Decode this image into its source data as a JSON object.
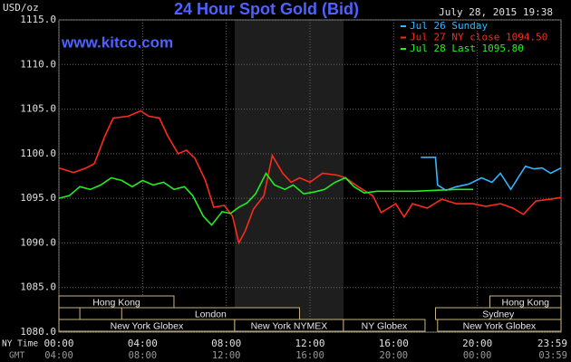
{
  "chart_data": {
    "type": "line",
    "title": "24 Hour Spot Gold (Bid)",
    "site": "www.kitco.com",
    "timestamp": "July 28, 2015 19:38",
    "y_label": "USD/oz",
    "x_label": "NY Time",
    "x2_label": "GMT",
    "ylim": [
      1080,
      1115
    ],
    "yticks": [
      {
        "value": 1080,
        "label": "1080.0"
      },
      {
        "value": 1085,
        "label": "1085.0"
      },
      {
        "value": 1090,
        "label": "1090.0"
      },
      {
        "value": 1095,
        "label": "1095.0"
      },
      {
        "value": 1100,
        "label": "1100.0"
      },
      {
        "value": 1105,
        "label": "1105.0"
      },
      {
        "value": 1110,
        "label": "1110.0"
      },
      {
        "value": 1115,
        "label": "1115.0"
      }
    ],
    "xlim": [
      0,
      24
    ],
    "xticks": [
      {
        "value": 0,
        "label": "00:00"
      },
      {
        "value": 4,
        "label": "04:00"
      },
      {
        "value": 8,
        "label": "08:00"
      },
      {
        "value": 12,
        "label": "12:00"
      },
      {
        "value": 16,
        "label": "16:00"
      },
      {
        "value": 20,
        "label": "20:00"
      },
      {
        "value": 24,
        "label": "23:59"
      }
    ],
    "x2ticks": [
      {
        "value": 0,
        "label": "04:00"
      },
      {
        "value": 4,
        "label": "08:00"
      },
      {
        "value": 8,
        "label": "12:00"
      },
      {
        "value": 12,
        "label": "16:00"
      },
      {
        "value": 16,
        "label": "20:00"
      },
      {
        "value": 20,
        "label": "00:00"
      },
      {
        "value": 24,
        "label": "03:59"
      }
    ],
    "grid": true,
    "shade": [
      8.4,
      13.6
    ],
    "sessions": [
      {
        "name": "Hong Kong",
        "start": 0,
        "end": 5.5,
        "row": 0
      },
      {
        "name": "Hong Kong",
        "start": 20.6,
        "end": 24,
        "row": 0
      },
      {
        "start": 0,
        "end": 1,
        "row": 1
      },
      {
        "name": "London",
        "start": 3,
        "end": 11.5,
        "row": 1
      },
      {
        "name": "Sydney",
        "start": 18,
        "end": 24,
        "row": 1
      },
      {
        "name": "New York Globex",
        "start": 0,
        "end": 8.4,
        "row": 2
      },
      {
        "name": "New York NYMEX",
        "start": 8.4,
        "end": 13.6,
        "row": 2
      },
      {
        "name": "NY Globex",
        "start": 13.6,
        "end": 17.5,
        "row": 2
      },
      {
        "name": "New York Globex",
        "start": 18.1,
        "end": 24,
        "row": 2
      }
    ],
    "series": [
      {
        "name": "Jul 26 Sunday",
        "color": "#33b5ff",
        "x": [
          17.3,
          18.0,
          18.1,
          18.5,
          19.0,
          19.6,
          20.2,
          20.7,
          21.1,
          21.6,
          22.0,
          22.3,
          22.7,
          23.1,
          23.5,
          24.0
        ],
        "values": [
          1099.6,
          1099.6,
          1096.5,
          1095.9,
          1096.3,
          1096.6,
          1097.3,
          1096.8,
          1097.8,
          1096.0,
          1097.5,
          1098.6,
          1098.3,
          1098.4,
          1097.8,
          1098.4
        ]
      },
      {
        "name": "Jul 27 NY close 1094.50",
        "color": "#ff2a1a",
        "x": [
          0,
          0.7,
          1.3,
          1.7,
          2.2,
          2.6,
          3.3,
          3.9,
          4.3,
          4.8,
          5.2,
          5.7,
          6.1,
          6.5,
          7.0,
          7.4,
          7.9,
          8.3,
          8.6,
          8.9,
          9.3,
          9.8,
          10.2,
          10.7,
          11.1,
          11.5,
          12.0,
          12.6,
          13.3,
          13.7,
          14.3,
          15.0,
          15.4,
          16.1,
          16.5,
          16.9,
          17.6,
          18.3,
          19.0,
          19.8,
          20.4,
          21.1,
          21.7,
          22.2,
          22.8,
          23.5,
          24.0
        ],
        "values": [
          1098.4,
          1097.9,
          1098.4,
          1098.9,
          1102.0,
          1104.0,
          1104.2,
          1104.8,
          1104.2,
          1104.0,
          1102.0,
          1100.0,
          1100.4,
          1099.5,
          1097.0,
          1094.0,
          1094.2,
          1093.0,
          1090.0,
          1091.3,
          1093.8,
          1095.3,
          1099.8,
          1097.8,
          1096.8,
          1097.3,
          1096.8,
          1097.8,
          1097.6,
          1097.3,
          1096.3,
          1095.3,
          1093.4,
          1094.4,
          1092.9,
          1094.4,
          1093.9,
          1094.9,
          1094.4,
          1094.4,
          1094.1,
          1094.4,
          1093.9,
          1093.2,
          1094.7,
          1094.9,
          1095.1
        ]
      },
      {
        "name": "Jul 28 Last 1095.80",
        "color": "#22ee22",
        "x": [
          0,
          0.5,
          1.0,
          1.5,
          2.0,
          2.5,
          3.0,
          3.5,
          4.0,
          4.5,
          5.0,
          5.5,
          6.0,
          6.4,
          6.9,
          7.3,
          7.8,
          8.2,
          8.6,
          9.0,
          9.4,
          9.9,
          10.3,
          10.8,
          11.2,
          11.7,
          12.2,
          12.7,
          13.2,
          13.7,
          14.1,
          14.6,
          15.2,
          16.0,
          17.0,
          18.0,
          19.0,
          19.8
        ],
        "values": [
          1095.0,
          1095.3,
          1096.3,
          1096.0,
          1096.5,
          1097.3,
          1097.0,
          1096.3,
          1097.0,
          1096.5,
          1096.8,
          1096.0,
          1096.3,
          1095.3,
          1093.0,
          1092.0,
          1093.5,
          1093.3,
          1094.0,
          1094.5,
          1095.5,
          1097.8,
          1096.5,
          1096.0,
          1096.5,
          1095.5,
          1095.7,
          1096.0,
          1096.8,
          1097.3,
          1096.3,
          1095.6,
          1095.8,
          1095.8,
          1095.8,
          1095.9,
          1096.0,
          1096.0
        ]
      }
    ]
  }
}
